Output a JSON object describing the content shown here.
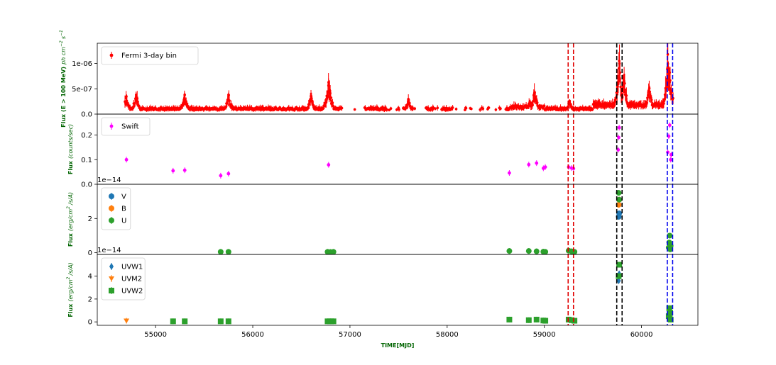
{
  "chart_data": {
    "type": "scatter",
    "xlabel": "TIME[MJD]",
    "xlim": [
      54400,
      60580
    ],
    "x_ticks": [
      "55000",
      "56000",
      "57000",
      "58000",
      "59000",
      "60000"
    ],
    "vlines": [
      {
        "x": 59245,
        "color": "#e00000"
      },
      {
        "x": 59300,
        "color": "#e00000"
      },
      {
        "x": 59745,
        "color": "#000000"
      },
      {
        "x": 59800,
        "color": "#000000"
      },
      {
        "x": 60265,
        "color": "#0000ee"
      },
      {
        "x": 60320,
        "color": "#0000ee"
      }
    ],
    "panels": [
      {
        "ylabel_bold": "Flux (E > 100 MeV)",
        "ylabel_unit": "ph cm",
        "ylabel_exp1": "−2",
        "ylabel_unit2": "s",
        "ylabel_exp2": "−1",
        "ylim": [
          0,
          1.4e-06
        ],
        "y_ticks": [
          {
            "v": 0,
            "label": "0.0"
          },
          {
            "v": 5e-07,
            "label": "5e-07"
          },
          {
            "v": 1e-06,
            "label": "1e-06"
          }
        ],
        "offset_text": "",
        "series": [
          {
            "name": "Fermi 3-day bin",
            "color": "#ff0000",
            "marker": "dot",
            "flares": [
              [
                54700,
                3.5e-07
              ],
              [
                54800,
                3.8e-07
              ],
              [
                55300,
                3.8e-07
              ],
              [
                55750,
                3.8e-07
              ],
              [
                56600,
                3.6e-07
              ],
              [
                56780,
                6.3e-07
              ],
              [
                57600,
                2.8e-07
              ],
              [
                58850,
                2.4e-07
              ],
              [
                58900,
                4.3e-07
              ],
              [
                59260,
                2.6e-07
              ],
              [
                59755,
                5.5e-07
              ],
              [
                59770,
                1.05e-06
              ],
              [
                59820,
                6.5e-07
              ],
              [
                60080,
                5.1e-07
              ],
              [
                60270,
                1.18e-06
              ],
              [
                60290,
                8.2e-07
              ],
              [
                60310,
                4.4e-07
              ]
            ]
          }
        ]
      },
      {
        "ylabel_bold": "Flux",
        "ylabel_unit": "(counts/sec)",
        "ylim": [
          0,
          0.285
        ],
        "y_ticks": [
          {
            "v": 0,
            "label": "0.0"
          },
          {
            "v": 0.1,
            "label": "0.1"
          },
          {
            "v": 0.2,
            "label": "0.2"
          }
        ],
        "offset_text": "",
        "series": [
          {
            "name": "Swift",
            "color": "#ff00ff",
            "marker": "dot",
            "x": [
              54700,
              55180,
              55300,
              55670,
              55750,
              56780,
              58640,
              58840,
              58920,
              58990,
              59010,
              59250,
              59280,
              59300,
              59760,
              59765,
              59770,
              60270,
              60280,
              60290,
              60300,
              60305
            ],
            "y": [
              0.1,
              0.055,
              0.057,
              0.035,
              0.043,
              0.079,
              0.046,
              0.08,
              0.086,
              0.065,
              0.07,
              0.07,
              0.066,
              0.064,
              0.14,
              0.19,
              0.23,
              0.13,
              0.195,
              0.24,
              0.1,
              0.12
            ]
          }
        ]
      },
      {
        "ylabel_bold": "Flux",
        "ylabel_unit": "(erg/cm",
        "ylabel_exp1": "2",
        "ylabel_unit2": "/s/A)",
        "ylim": [
          -0.1,
          4.0
        ],
        "y_ticks": [
          {
            "v": 0,
            "label": "0"
          },
          {
            "v": 2,
            "label": "2"
          }
        ],
        "offset_text": "1e−14",
        "series": [
          {
            "name": "V",
            "color": "#1f77b4",
            "marker": "circle",
            "x": [
              59765,
              59770
            ],
            "y": [
              2.1,
              2.3
            ]
          },
          {
            "name": "B",
            "color": "#ff7f0e",
            "marker": "circle",
            "x": [
              59765,
              59770
            ],
            "y": [
              2.8,
              3.1
            ]
          },
          {
            "name": "U",
            "color": "#2ca02c",
            "marker": "circle",
            "x": [
              55670,
              55750,
              56770,
              56800,
              56830,
              58640,
              58840,
              58920,
              58990,
              59010,
              59250,
              59280,
              59310,
              59765,
              59770,
              60280,
              60285,
              60290,
              60295,
              60300
            ],
            "y": [
              0.05,
              0.05,
              0.05,
              0.04,
              0.05,
              0.1,
              0.1,
              0.08,
              0.06,
              0.05,
              0.12,
              0.08,
              0.05,
              3.5,
              3.1,
              0.3,
              0.6,
              1.0,
              0.2,
              0.4
            ]
          }
        ]
      },
      {
        "ylabel_bold": "Flux",
        "ylabel_unit": "(erg/cm",
        "ylabel_exp1": "2",
        "ylabel_unit2": "/s/A)",
        "ylim": [
          -0.3,
          5.9
        ],
        "y_ticks": [
          {
            "v": 0,
            "label": "0"
          },
          {
            "v": 2,
            "label": "2"
          },
          {
            "v": 4,
            "label": "4"
          }
        ],
        "offset_text": "1e−14",
        "series": [
          {
            "name": "UVW1",
            "color": "#1f77b4",
            "marker": "diamond",
            "x": [
              59765,
              59770
            ],
            "y": [
              3.6,
              4.2
            ]
          },
          {
            "name": "UVM2",
            "color": "#ff7f0e",
            "marker": "triangle",
            "x": [
              54700
            ],
            "y": [
              0.1
            ]
          },
          {
            "name": "UVW2",
            "color": "#2ca02c",
            "marker": "square",
            "x": [
              55180,
              55300,
              55670,
              55750,
              56770,
              56800,
              56830,
              58640,
              58840,
              58920,
              58990,
              59010,
              59250,
              59280,
              59310,
              59765,
              59770,
              60280,
              60285,
              60290,
              60295,
              60300
            ],
            "y": [
              0.05,
              0.05,
              0.05,
              0.05,
              0.05,
              0.05,
              0.05,
              0.2,
              0.15,
              0.2,
              0.12,
              0.1,
              0.2,
              0.15,
              0.1,
              4.0,
              5.0,
              0.5,
              1.2,
              0.3,
              0.8,
              0.2
            ]
          }
        ]
      }
    ]
  }
}
